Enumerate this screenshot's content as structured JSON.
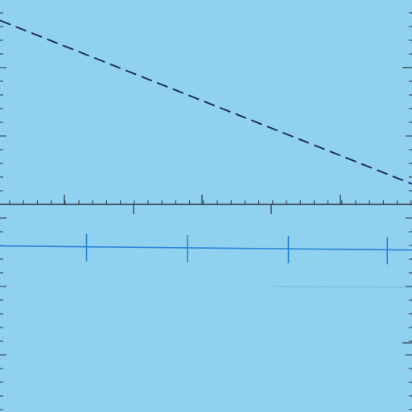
{
  "colors": {
    "background": "#8fd1ee",
    "axis": "#2b3440",
    "dashed_line": "#1f2f66",
    "lower_line": "#2a83d8",
    "lower_line_faint": "#5aaee4"
  },
  "chart_data": [
    {
      "type": "line",
      "panel": "top",
      "grid": false,
      "legend": "none",
      "xlim": [
        0,
        1
      ],
      "ylim": [
        0,
        1
      ],
      "series": [
        {
          "style": "dashed",
          "x": [
            0,
            1
          ],
          "y": [
            0.9,
            0.1
          ]
        }
      ]
    },
    {
      "type": "line",
      "panel": "bottom",
      "grid": false,
      "legend": "none",
      "xlim": [
        0,
        1
      ],
      "ylim": [
        0,
        1
      ],
      "series": [
        {
          "style": "solid",
          "x": [
            0,
            1
          ],
          "y": [
            0.8,
            0.78
          ],
          "markers_x": [
            0.21,
            0.455,
            0.7,
            0.94
          ]
        }
      ]
    }
  ]
}
